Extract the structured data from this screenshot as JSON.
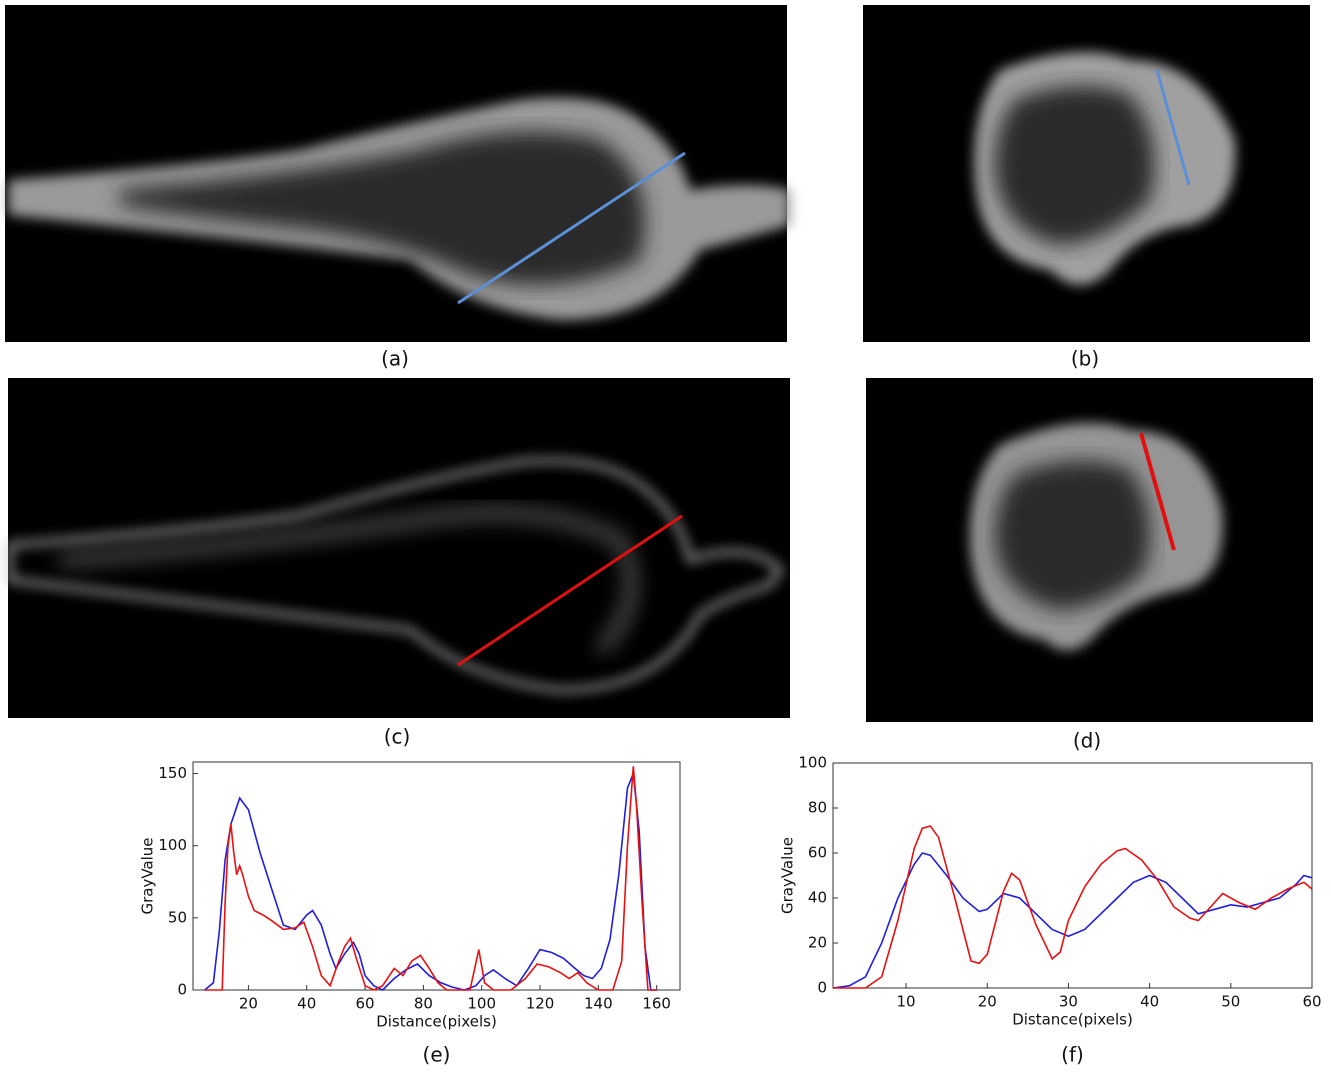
{
  "panels": [
    {
      "label": "(a)"
    },
    {
      "label": "(b)"
    },
    {
      "label": "(c)"
    },
    {
      "label": "(d)"
    }
  ],
  "chart_data": [
    {
      "type": "line",
      "caption": "(e)",
      "x_label": "Distance(pixels)",
      "y_label": "GrayValue",
      "xlim": [
        1,
        168
      ],
      "ylim": [
        0,
        158
      ],
      "xticks": [
        20,
        40,
        60,
        80,
        100,
        120,
        140,
        160
      ],
      "yticks": [
        0,
        50,
        100,
        150
      ],
      "series": [
        {
          "color": "#1f1fe0",
          "x": [
            5,
            8,
            10,
            12,
            14,
            17,
            20,
            24,
            28,
            32,
            36,
            40,
            42,
            45,
            48,
            50,
            53,
            56,
            58,
            60,
            63,
            66,
            70,
            74,
            78,
            82,
            86,
            90,
            94,
            98,
            101,
            104,
            108,
            112,
            116,
            120,
            124,
            128,
            132,
            135,
            138,
            141,
            144,
            147,
            150,
            152,
            154,
            156,
            158,
            160
          ],
          "values": [
            0,
            5,
            40,
            90,
            115,
            133,
            125,
            95,
            70,
            45,
            42,
            52,
            55,
            45,
            25,
            15,
            25,
            33,
            25,
            10,
            3,
            0,
            8,
            14,
            18,
            10,
            5,
            2,
            0,
            3,
            10,
            14,
            8,
            3,
            15,
            28,
            26,
            22,
            15,
            10,
            8,
            15,
            35,
            80,
            140,
            150,
            110,
            30,
            0,
            0
          ]
        },
        {
          "color": "#e81010",
          "x": [
            5,
            11,
            12,
            13,
            14,
            15,
            16,
            17,
            18,
            20,
            22,
            25,
            28,
            32,
            36,
            39,
            42,
            45,
            48,
            51,
            53,
            55,
            57,
            60,
            63,
            66,
            70,
            73,
            76,
            79,
            82,
            85,
            88,
            92,
            96,
            99,
            101,
            104,
            110,
            115,
            119,
            123,
            127,
            130,
            133,
            136,
            140,
            145,
            148,
            150,
            152,
            153,
            155,
            157,
            160
          ],
          "values": [
            0,
            0,
            60,
            100,
            115,
            95,
            80,
            86,
            80,
            65,
            55,
            52,
            48,
            42,
            43,
            47,
            30,
            10,
            3,
            20,
            30,
            36,
            22,
            3,
            0,
            3,
            15,
            10,
            20,
            24,
            15,
            5,
            0,
            0,
            0,
            28,
            5,
            0,
            0,
            8,
            18,
            16,
            12,
            8,
            12,
            5,
            0,
            0,
            20,
            100,
            155,
            130,
            60,
            0,
            0
          ]
        }
      ]
    },
    {
      "type": "line",
      "caption": "(f)",
      "x_label": "Distance(pixels)",
      "y_label": "GrayValue",
      "xlim": [
        1,
        60
      ],
      "ylim": [
        0,
        100
      ],
      "xticks": [
        10,
        20,
        30,
        40,
        50,
        60
      ],
      "yticks": [
        0,
        20,
        40,
        60,
        80,
        100
      ],
      "series": [
        {
          "color": "#1f1fe0",
          "x": [
            1,
            3,
            5,
            7,
            9,
            11,
            12,
            13,
            15,
            17,
            19,
            20,
            22,
            24,
            26,
            28,
            30,
            32,
            34,
            36,
            38,
            40,
            42,
            44,
            46,
            48,
            50,
            52,
            54,
            56,
            58,
            59,
            60
          ],
          "values": [
            0,
            1,
            5,
            20,
            40,
            55,
            60,
            59,
            50,
            40,
            34,
            35,
            42,
            40,
            33,
            26,
            23,
            26,
            33,
            40,
            47,
            50,
            47,
            40,
            33,
            35,
            37,
            36,
            38,
            40,
            46,
            50,
            49
          ]
        },
        {
          "color": "#e81010",
          "x": [
            1,
            5,
            7,
            9,
            11,
            12,
            13,
            14,
            16,
            18,
            19,
            20,
            22,
            23,
            24,
            26,
            28,
            29,
            30,
            32,
            34,
            36,
            37,
            39,
            41,
            43,
            45,
            46,
            47,
            49,
            51,
            53,
            55,
            57,
            59,
            60
          ],
          "values": [
            0,
            0,
            5,
            30,
            62,
            71,
            72,
            67,
            40,
            12,
            11,
            15,
            43,
            51,
            48,
            28,
            13,
            16,
            30,
            45,
            55,
            61,
            62,
            57,
            48,
            36,
            31,
            30,
            34,
            42,
            38,
            35,
            40,
            44,
            47,
            44
          ]
        }
      ]
    }
  ]
}
